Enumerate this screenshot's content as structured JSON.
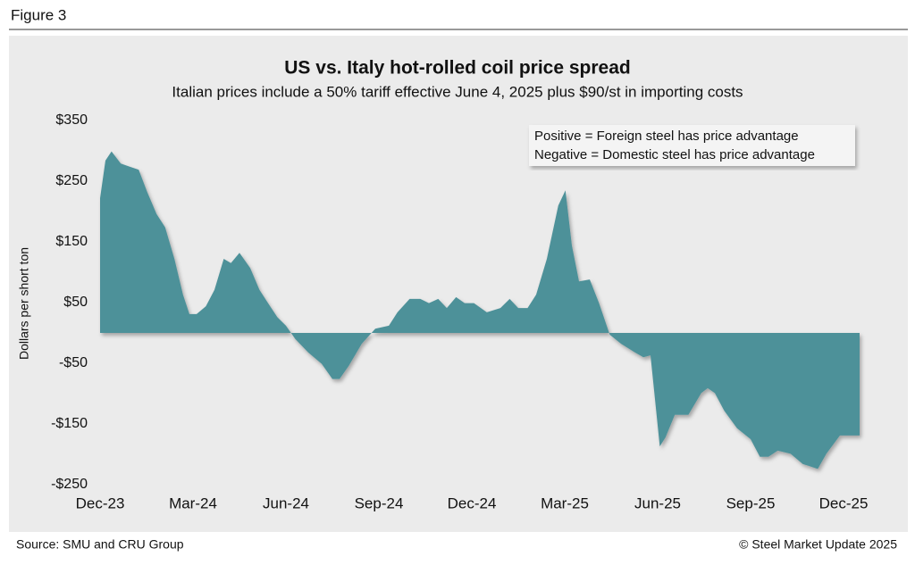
{
  "figure_label": "Figure 3",
  "source": "Source: SMU and CRU Group",
  "copyright": "© Steel Market Update 2025",
  "chart_data": {
    "type": "area",
    "title": "US vs. Italy hot-rolled coil price spread",
    "subtitle": "Italian prices include a 50% tariff effective June 4, 2025 plus $90/st in importing costs",
    "y_label": "Dollars per short ton",
    "annotation": [
      "Positive = Foreign steel has price advantage",
      "Negative = Domestic steel has price advantage"
    ],
    "color": "#4e9199",
    "x": [
      0,
      0.75,
      1.6,
      2.9,
      4.1,
      5.4,
      6.6,
      7.9,
      9.1,
      10.4,
      11.6,
      12.5,
      13.5,
      14.8,
      16,
      17.3,
      18.3,
      19.5,
      21,
      22.3,
      23.5,
      24.8,
      26,
      27.3,
      29.1,
      31,
      32.5,
      33.5,
      34.8,
      36.6,
      38.5,
      40.4,
      41.6,
      43.3,
      44.8,
      46,
      47.3,
      48.5,
      49.8,
      51,
      52.3,
      54.1,
      56,
      57.3,
      58.5,
      59.8,
      61,
      62.5,
      64.1,
      65.1,
      66,
      67,
      68.5,
      69.8,
      71.3,
      72.9,
      74.8,
      76,
      77,
      78.3,
      79.1,
      80.4,
      82.3,
      84.1,
      85,
      86,
      87.3,
      89.1,
      91,
      92.3,
      93.5,
      94.8,
      96.6,
      98.3,
      99.1,
      100.4,
      101.6,
      103.5,
      104.8,
      106.25
    ],
    "values": [
      222,
      284,
      299,
      279,
      274,
      269,
      232,
      196,
      174,
      122,
      63,
      31,
      31,
      44,
      71,
      122,
      115,
      132,
      107,
      71,
      49,
      26,
      12,
      -10,
      -32,
      -51,
      -76,
      -76,
      -54,
      -18,
      7,
      12,
      34,
      56,
      56,
      49,
      56,
      41,
      59,
      49,
      49,
      34,
      41,
      56,
      41,
      41,
      63,
      122,
      210,
      235,
      144,
      85,
      88,
      49,
      -3,
      -18,
      -32,
      -40,
      -37,
      -187,
      -172,
      -135,
      -135,
      -99,
      -91,
      -99,
      -128,
      -157,
      -175,
      -204,
      -204,
      -194,
      -199,
      -216,
      -219,
      -224,
      -199,
      -169,
      -169,
      -169
    ],
    "xlim": [
      0,
      106.25
    ],
    "xticks": [
      {
        "value": 0,
        "label": "Dec-23"
      },
      {
        "value": 13,
        "label": "Mar-24"
      },
      {
        "value": 26,
        "label": "Jun-24"
      },
      {
        "value": 39,
        "label": "Sep-24"
      },
      {
        "value": 52,
        "label": "Dec-24"
      },
      {
        "value": 65,
        "label": "Mar-25"
      },
      {
        "value": 78,
        "label": "Jun-25"
      },
      {
        "value": 91,
        "label": "Sep-25"
      },
      {
        "value": 104,
        "label": "Dec-25"
      }
    ],
    "ylim": [
      -250,
      350
    ],
    "yticks": [
      {
        "value": 350,
        "label": "$350"
      },
      {
        "value": 250,
        "label": "$250"
      },
      {
        "value": 150,
        "label": "$150"
      },
      {
        "value": 50,
        "label": "$50"
      },
      {
        "value": -50,
        "label": "-$50"
      },
      {
        "value": -150,
        "label": "-$150"
      },
      {
        "value": -250,
        "label": "-$250"
      }
    ]
  }
}
